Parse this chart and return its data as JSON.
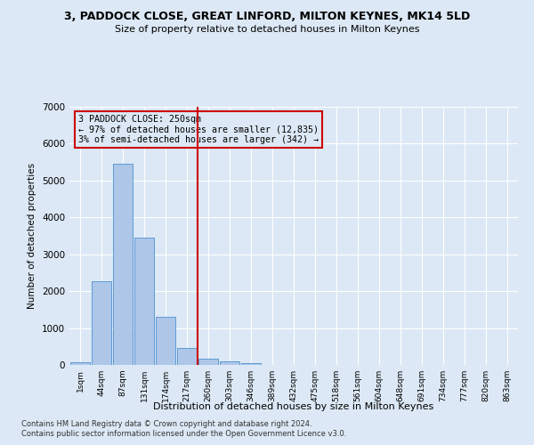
{
  "title": "3, PADDOCK CLOSE, GREAT LINFORD, MILTON KEYNES, MK14 5LD",
  "subtitle": "Size of property relative to detached houses in Milton Keynes",
  "xlabel": "Distribution of detached houses by size in Milton Keynes",
  "ylabel": "Number of detached properties",
  "footer_line1": "Contains HM Land Registry data © Crown copyright and database right 2024.",
  "footer_line2": "Contains public sector information licensed under the Open Government Licence v3.0.",
  "bar_labels": [
    "1sqm",
    "44sqm",
    "87sqm",
    "131sqm",
    "174sqm",
    "217sqm",
    "260sqm",
    "303sqm",
    "346sqm",
    "389sqm",
    "432sqm",
    "475sqm",
    "518sqm",
    "561sqm",
    "604sqm",
    "648sqm",
    "691sqm",
    "734sqm",
    "777sqm",
    "820sqm",
    "863sqm"
  ],
  "bar_values": [
    75,
    2280,
    5460,
    3440,
    1310,
    460,
    160,
    95,
    60,
    0,
    0,
    0,
    0,
    0,
    0,
    0,
    0,
    0,
    0,
    0,
    0
  ],
  "bar_color": "#aec6e8",
  "bar_edge_color": "#5b9bd5",
  "vline_x_index": 5.5,
  "vline_color": "#cc0000",
  "annotation_text": "3 PADDOCK CLOSE: 250sqm\n← 97% of detached houses are smaller (12,835)\n3% of semi-detached houses are larger (342) →",
  "annotation_box_color": "#cc0000",
  "ylim": [
    0,
    7000
  ],
  "background_color": "#dce8f5",
  "grid_color": "#ffffff"
}
